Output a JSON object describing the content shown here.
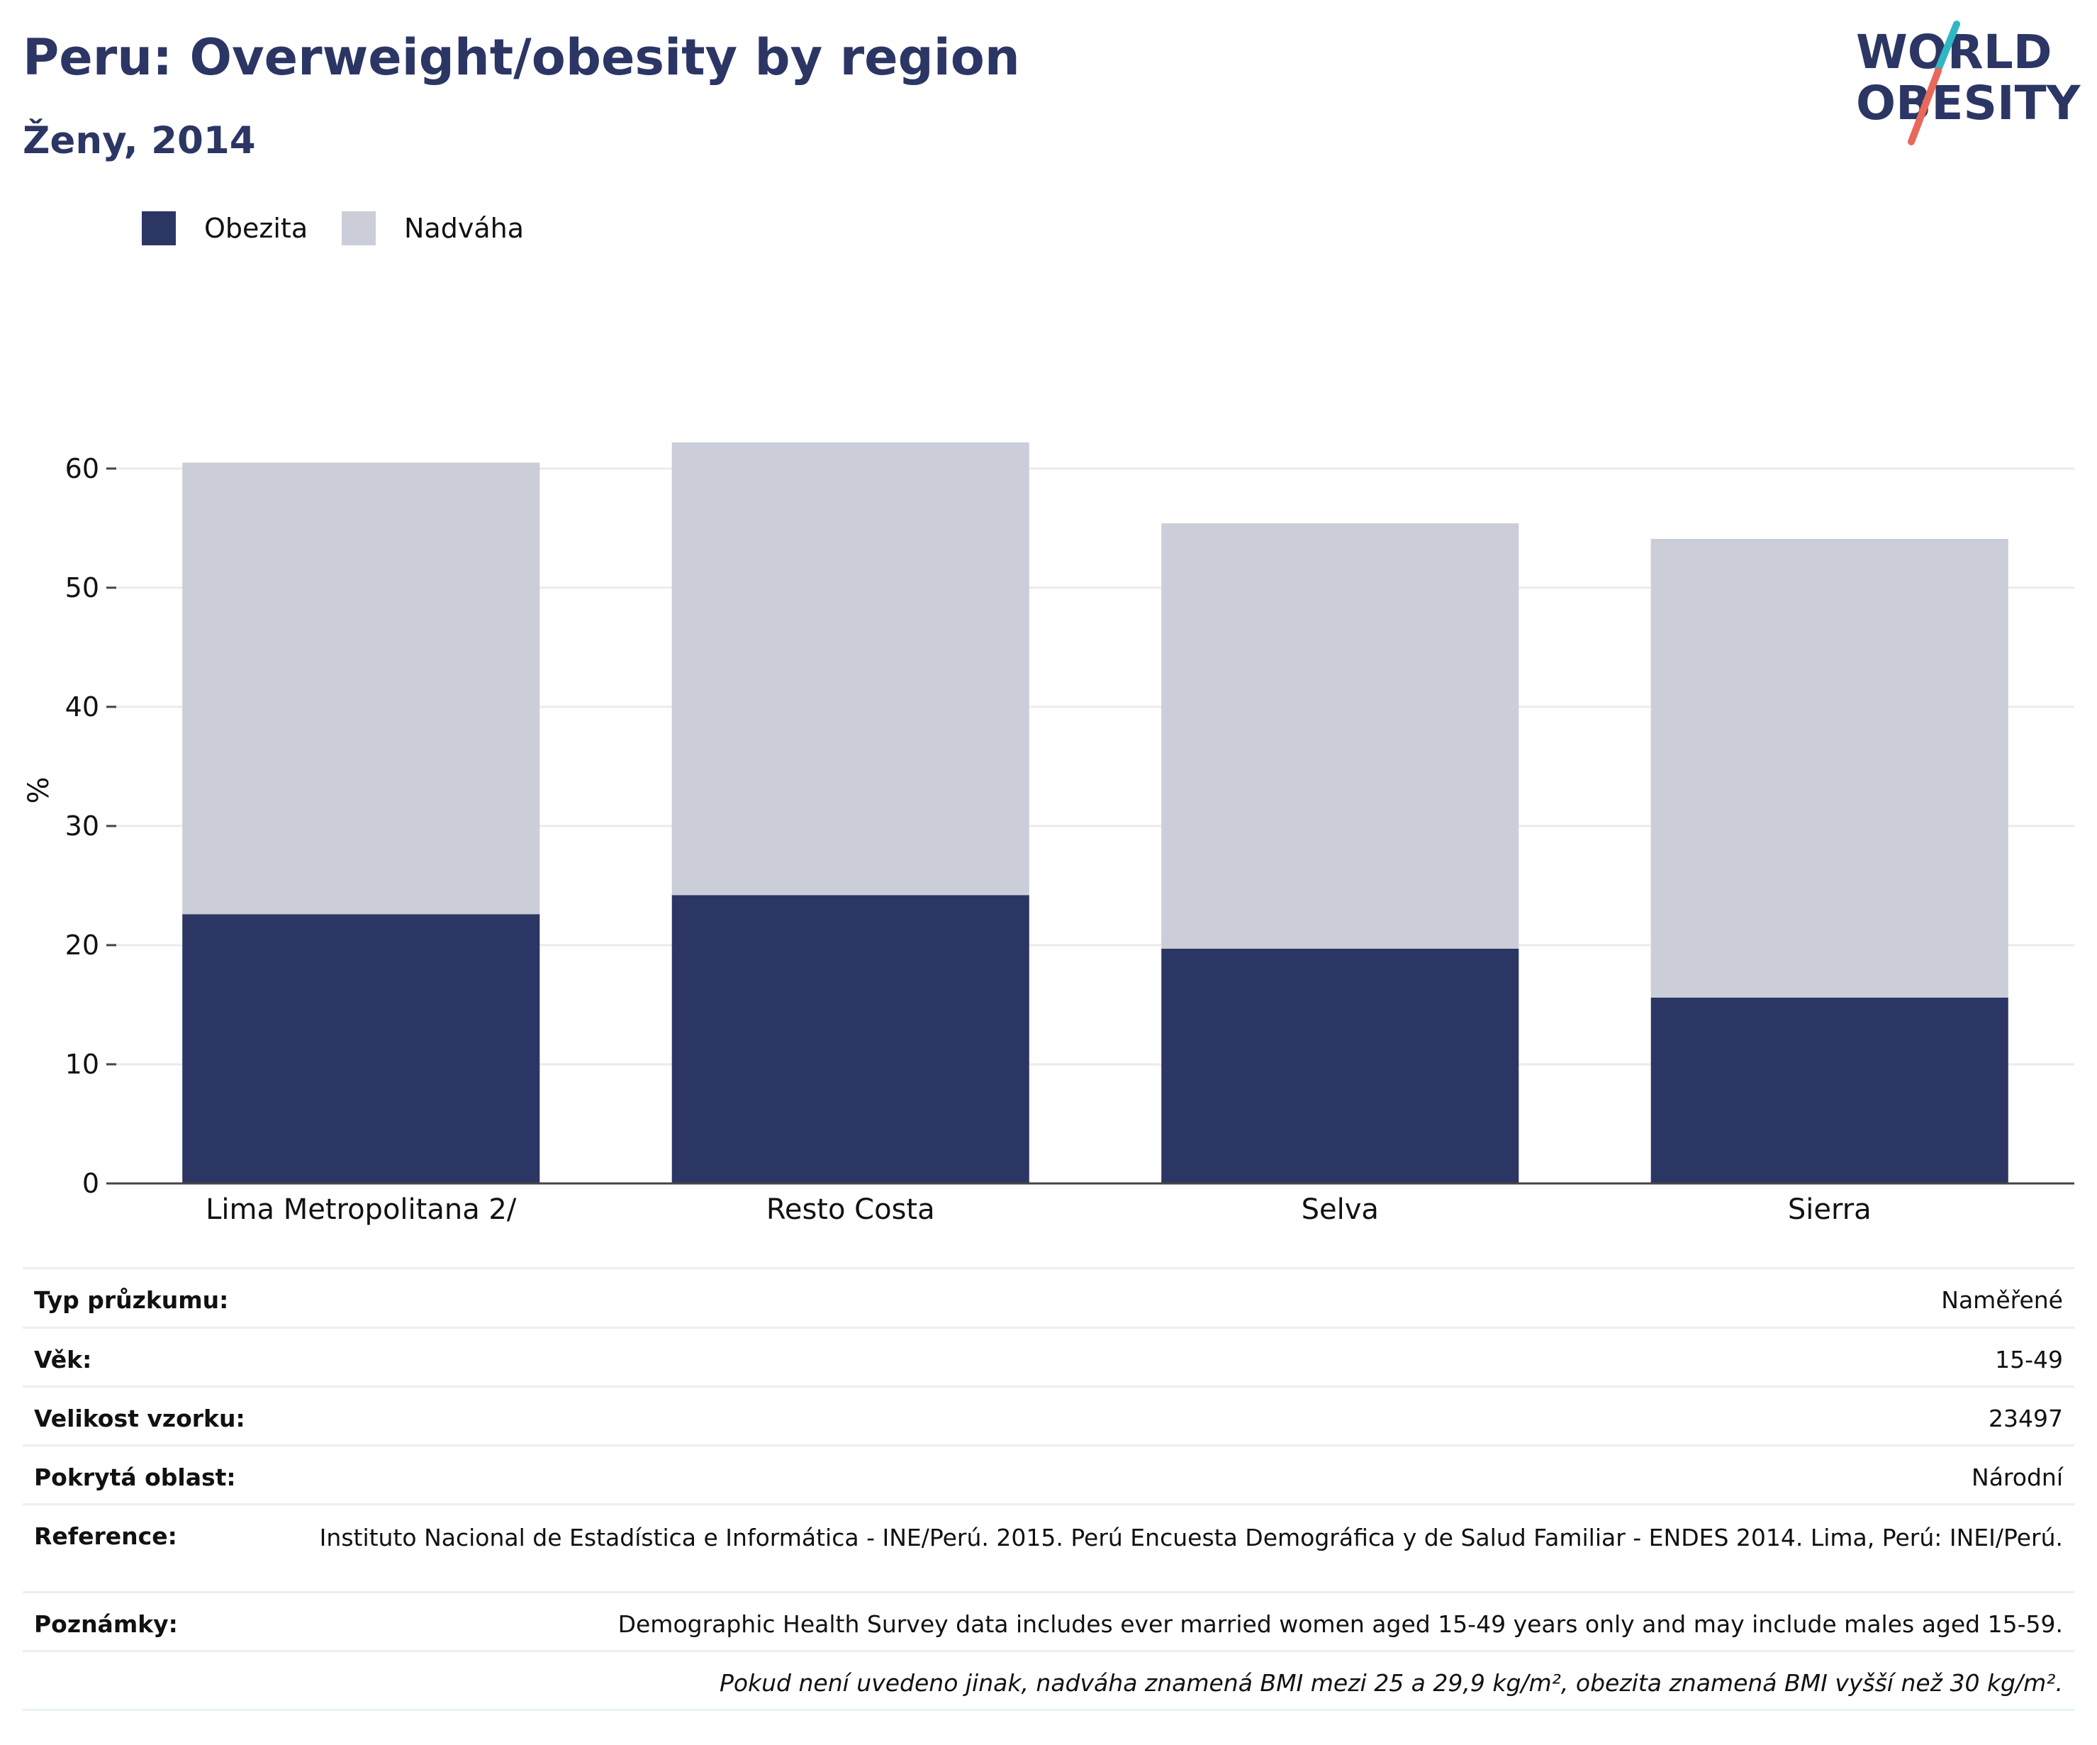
{
  "header": {
    "title": "Peru: Overweight/obesity by region",
    "subtitle": "Ženy, 2014"
  },
  "logo": {
    "line1": "WORLD",
    "line2": "OBESITY",
    "accent_colors": [
      "#2fb8c4",
      "#e8685a"
    ]
  },
  "legend": [
    {
      "label": "Obezita",
      "color": "#2b3664"
    },
    {
      "label": "Nadváha",
      "color": "#cbcdd8"
    }
  ],
  "chart_data": {
    "type": "bar",
    "stacked": true,
    "categories": [
      "Lima Metropolitana 2/",
      "Resto Costa",
      "Selva",
      "Sierra"
    ],
    "series": [
      {
        "name": "Obezita",
        "color": "#2b3664",
        "values": [
          22.6,
          24.2,
          19.7,
          15.6
        ]
      },
      {
        "name": "Nadváha",
        "color": "#cbcdd8",
        "values": [
          37.9,
          38.0,
          35.7,
          38.5
        ]
      }
    ],
    "ylabel": "%",
    "yticks": [
      0,
      10,
      20,
      30,
      40,
      50,
      60
    ],
    "ylim": [
      0,
      66
    ],
    "grid": true
  },
  "info": {
    "rows": [
      {
        "key": "Typ průzkumu:",
        "value": "Naměřené"
      },
      {
        "key": "Věk:",
        "value": "15-49"
      },
      {
        "key": "Velikost vzorku:",
        "value": "23497"
      },
      {
        "key": "Pokrytá oblast:",
        "value": "Národní"
      },
      {
        "key": "Reference:",
        "value": "Instituto Nacional de Estadística e Informática - INE/Perú. 2015. Perú Encuesta Demográfica y de Salud Familiar - ENDES 2014. Lima, Perú: INEI/Perú."
      },
      {
        "key": "Poznámky:",
        "value": "Demographic Health Survey data includes ever married women aged 15-49 years only and may include males aged 15-59."
      }
    ],
    "footnote": "Pokud není uvedeno jinak, nadváha znamená BMI mezi 25 a 29,9 kg/m², obezita znamená BMI vyšší než 30 kg/m²."
  }
}
